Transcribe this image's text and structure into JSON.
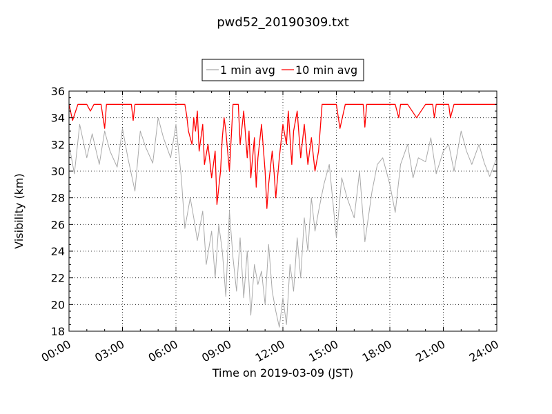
{
  "chart_data": {
    "type": "line",
    "title": "pwd52_20190309.txt",
    "xlabel": "Time on 2019-03-09 (JST)",
    "ylabel": "Visibility (km)",
    "xlim": [
      "00:00",
      "24:00"
    ],
    "ylim": [
      18,
      36
    ],
    "x_tick_labels": [
      "00:00",
      "03:00",
      "06:00",
      "09:00",
      "12:00",
      "15:00",
      "18:00",
      "21:00",
      "24:00"
    ],
    "y_tick_labels": [
      "18",
      "20",
      "22",
      "24",
      "26",
      "28",
      "30",
      "32",
      "34",
      "36"
    ],
    "grid": true,
    "legend_position": "top-center",
    "series": [
      {
        "name": "1 min avg",
        "color": "#a9a9a9",
        "x_hours": [
          0.0,
          0.3,
          0.6,
          1.0,
          1.3,
          1.7,
          2.0,
          2.3,
          2.7,
          3.0,
          3.3,
          3.7,
          4.0,
          4.3,
          4.7,
          5.0,
          5.3,
          5.7,
          6.0,
          6.3,
          6.5,
          6.8,
          7.0,
          7.2,
          7.5,
          7.7,
          8.0,
          8.2,
          8.4,
          8.6,
          8.8,
          9.0,
          9.2,
          9.4,
          9.6,
          9.8,
          10.0,
          10.2,
          10.4,
          10.6,
          10.8,
          11.0,
          11.2,
          11.4,
          11.6,
          11.8,
          12.0,
          12.2,
          12.4,
          12.6,
          12.8,
          13.0,
          13.2,
          13.4,
          13.6,
          13.8,
          14.0,
          14.3,
          14.6,
          15.0,
          15.3,
          15.6,
          16.0,
          16.3,
          16.6,
          17.0,
          17.3,
          17.6,
          18.0,
          18.3,
          18.6,
          19.0,
          19.3,
          19.6,
          20.0,
          20.3,
          20.6,
          21.0,
          21.3,
          21.6,
          22.0,
          22.3,
          22.6,
          23.0,
          23.3,
          23.6,
          24.0
        ],
        "values": [
          32.0,
          29.8,
          33.5,
          31.0,
          32.8,
          30.5,
          33.0,
          31.5,
          30.3,
          33.2,
          31.0,
          28.5,
          33.0,
          31.8,
          30.6,
          34.0,
          32.5,
          31.0,
          33.5,
          29.5,
          25.7,
          28.0,
          26.5,
          24.8,
          27.0,
          23.0,
          25.5,
          22.0,
          26.0,
          24.0,
          20.6,
          27.0,
          23.5,
          21.0,
          25.0,
          20.5,
          24.0,
          19.2,
          23.0,
          21.5,
          22.5,
          20.0,
          24.5,
          21.0,
          19.5,
          18.3,
          20.5,
          18.5,
          23.0,
          21.0,
          25.0,
          22.0,
          26.5,
          24.0,
          28.0,
          25.5,
          27.0,
          29.0,
          30.5,
          25.0,
          29.5,
          28.0,
          26.5,
          30.0,
          24.7,
          28.5,
          30.5,
          31.0,
          29.0,
          26.9,
          30.5,
          32.0,
          29.5,
          31.0,
          30.7,
          32.5,
          29.8,
          31.5,
          32.0,
          30.0,
          33.0,
          31.5,
          30.5,
          32.0,
          30.6,
          29.6,
          31.0
        ]
      },
      {
        "name": "10 min avg",
        "color": "#ff0000",
        "x_hours": [
          0.0,
          0.2,
          0.5,
          1.0,
          1.2,
          1.4,
          1.8,
          2.0,
          2.1,
          2.5,
          3.0,
          3.5,
          3.6,
          3.7,
          4.0,
          4.5,
          5.0,
          5.5,
          6.0,
          6.5,
          6.6,
          6.7,
          6.9,
          7.0,
          7.1,
          7.2,
          7.3,
          7.5,
          7.6,
          7.8,
          8.0,
          8.1,
          8.2,
          8.3,
          8.5,
          8.6,
          8.7,
          8.8,
          9.0,
          9.2,
          9.4,
          9.5,
          9.6,
          9.8,
          10.0,
          10.1,
          10.2,
          10.4,
          10.5,
          10.6,
          10.8,
          11.0,
          11.1,
          11.2,
          11.4,
          11.5,
          11.6,
          11.8,
          12.0,
          12.2,
          12.3,
          12.5,
          12.6,
          12.8,
          13.0,
          13.2,
          13.4,
          13.6,
          13.8,
          14.0,
          14.2,
          14.5,
          14.8,
          15.0,
          15.2,
          15.5,
          16.0,
          16.5,
          16.6,
          16.7,
          17.0,
          17.5,
          18.0,
          18.3,
          18.5,
          18.6,
          19.0,
          19.5,
          20.0,
          20.4,
          20.5,
          20.6,
          21.0,
          21.3,
          21.4,
          21.6,
          22.0,
          22.5,
          23.0,
          23.5,
          24.0
        ],
        "values": [
          35.0,
          33.8,
          35.0,
          35.0,
          34.5,
          35.0,
          35.0,
          33.2,
          35.0,
          35.0,
          35.0,
          35.0,
          33.8,
          35.0,
          35.0,
          35.0,
          35.0,
          35.0,
          35.0,
          35.0,
          34.2,
          33.0,
          32.0,
          34.0,
          33.0,
          34.5,
          31.5,
          33.5,
          30.5,
          32.0,
          29.5,
          30.5,
          31.5,
          27.5,
          30.0,
          32.5,
          34.0,
          33.0,
          30.0,
          35.0,
          35.0,
          35.0,
          32.0,
          34.5,
          31.0,
          33.0,
          29.5,
          32.5,
          28.8,
          31.0,
          33.5,
          30.0,
          27.2,
          29.0,
          31.5,
          30.0,
          28.0,
          31.0,
          33.5,
          32.0,
          34.5,
          30.5,
          33.0,
          34.5,
          31.0,
          33.5,
          30.5,
          32.5,
          30.0,
          31.5,
          35.0,
          35.0,
          35.0,
          35.0,
          33.2,
          35.0,
          35.0,
          35.0,
          33.3,
          35.0,
          35.0,
          35.0,
          35.0,
          35.0,
          34.0,
          35.0,
          35.0,
          34.0,
          35.0,
          35.0,
          34.0,
          35.0,
          35.0,
          35.0,
          34.0,
          35.0,
          35.0,
          35.0,
          35.0,
          35.0,
          35.0
        ]
      }
    ]
  }
}
